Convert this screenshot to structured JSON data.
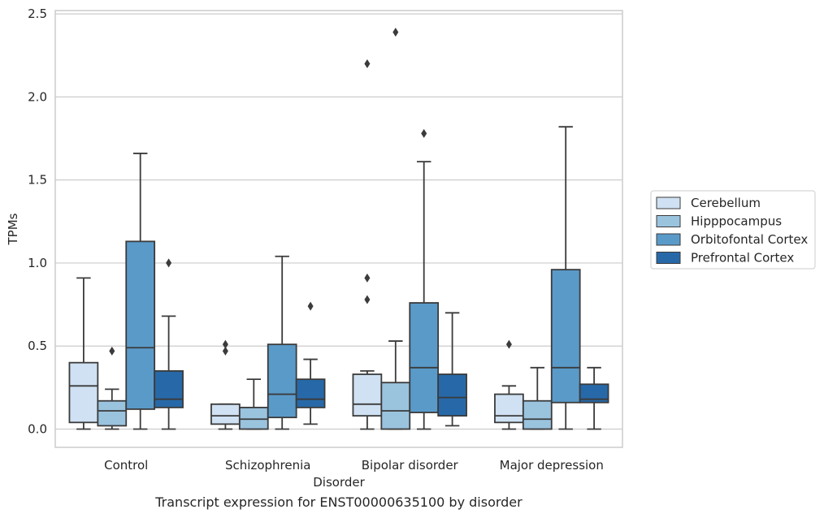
{
  "caption": "Transcript expression for ENST00000635100 by disorder",
  "chart_data": {
    "type": "box",
    "title": "",
    "xlabel": "Disorder",
    "ylabel": "TPMs",
    "ylim": [
      -0.11,
      2.52
    ],
    "yticks": [
      0.0,
      0.5,
      1.0,
      1.5,
      2.0,
      2.5
    ],
    "ytick_labels": [
      "0.0",
      "0.5",
      "1.0",
      "1.5",
      "2.0",
      "2.5"
    ],
    "grid": "horizontal",
    "legend_position": "right",
    "categories": [
      "Control",
      "Schizophrenia",
      "Bipolar disorder",
      "Major depression"
    ],
    "series": [
      {
        "name": "Cerebellum",
        "color": "#cfe1f2",
        "boxes": [
          {
            "whisker_low": 0.0,
            "q1": 0.04,
            "median": 0.26,
            "q3": 0.4,
            "whisker_high": 0.91,
            "outliers": []
          },
          {
            "whisker_low": 0.0,
            "q1": 0.03,
            "median": 0.08,
            "q3": 0.15,
            "whisker_high": 0.15,
            "outliers": [
              0.47,
              0.51
            ]
          },
          {
            "whisker_low": 0.0,
            "q1": 0.08,
            "median": 0.15,
            "q3": 0.33,
            "whisker_high": 0.35,
            "outliers": [
              0.78,
              0.91,
              2.2
            ]
          },
          {
            "whisker_low": 0.0,
            "q1": 0.04,
            "median": 0.08,
            "q3": 0.21,
            "whisker_high": 0.26,
            "outliers": [
              0.51
            ]
          }
        ]
      },
      {
        "name": "Hipppocampus",
        "color": "#9ac3de",
        "boxes": [
          {
            "whisker_low": 0.0,
            "q1": 0.02,
            "median": 0.11,
            "q3": 0.17,
            "whisker_high": 0.24,
            "outliers": [
              0.47
            ]
          },
          {
            "whisker_low": 0.0,
            "q1": 0.0,
            "median": 0.06,
            "q3": 0.13,
            "whisker_high": 0.3,
            "outliers": []
          },
          {
            "whisker_low": 0.0,
            "q1": 0.0,
            "median": 0.11,
            "q3": 0.28,
            "whisker_high": 0.53,
            "outliers": [
              2.39
            ]
          },
          {
            "whisker_low": 0.0,
            "q1": 0.0,
            "median": 0.06,
            "q3": 0.17,
            "whisker_high": 0.37,
            "outliers": []
          }
        ]
      },
      {
        "name": "Orbitofontal Cortex",
        "color": "#5a9ac9",
        "boxes": [
          {
            "whisker_low": 0.0,
            "q1": 0.12,
            "median": 0.49,
            "q3": 1.13,
            "whisker_high": 1.66,
            "outliers": []
          },
          {
            "whisker_low": 0.0,
            "q1": 0.07,
            "median": 0.21,
            "q3": 0.51,
            "whisker_high": 1.04,
            "outliers": []
          },
          {
            "whisker_low": 0.0,
            "q1": 0.1,
            "median": 0.37,
            "q3": 0.76,
            "whisker_high": 1.61,
            "outliers": [
              1.78
            ]
          },
          {
            "whisker_low": 0.0,
            "q1": 0.16,
            "median": 0.37,
            "q3": 0.96,
            "whisker_high": 1.82,
            "outliers": []
          }
        ]
      },
      {
        "name": "Prefrontal Cortex",
        "color": "#2769a8",
        "boxes": [
          {
            "whisker_low": 0.0,
            "q1": 0.13,
            "median": 0.18,
            "q3": 0.35,
            "whisker_high": 0.68,
            "outliers": [
              1.0
            ]
          },
          {
            "whisker_low": 0.03,
            "q1": 0.13,
            "median": 0.18,
            "q3": 0.3,
            "whisker_high": 0.42,
            "outliers": [
              0.74
            ]
          },
          {
            "whisker_low": 0.02,
            "q1": 0.08,
            "median": 0.19,
            "q3": 0.33,
            "whisker_high": 0.7,
            "outliers": []
          },
          {
            "whisker_low": 0.0,
            "q1": 0.16,
            "median": 0.18,
            "q3": 0.27,
            "whisker_high": 0.37,
            "outliers": []
          }
        ]
      }
    ]
  }
}
